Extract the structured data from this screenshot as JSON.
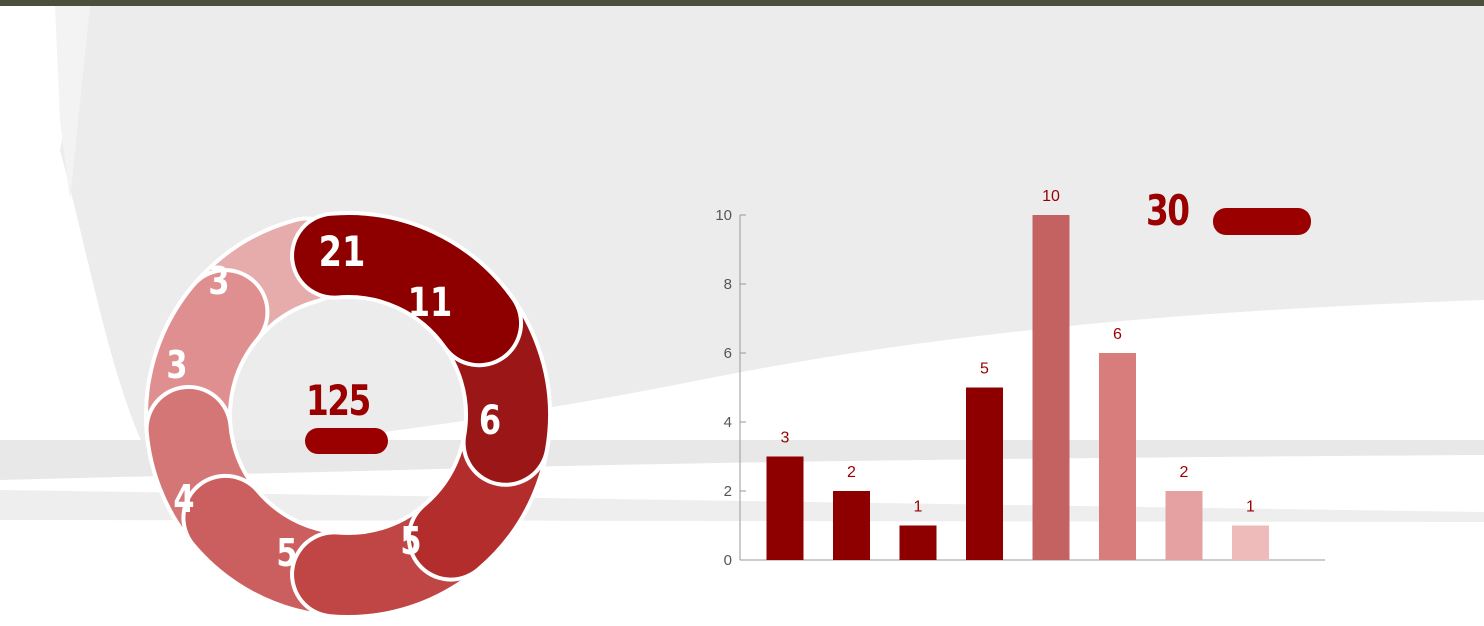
{
  "donut": {
    "total": "125",
    "segments": [
      {
        "label": "21",
        "value": 21,
        "color": "#8e0000"
      },
      {
        "label": "11",
        "value": 11,
        "color": "#9b1616"
      },
      {
        "label": "6",
        "value": 6,
        "color": "#b42d2d"
      },
      {
        "label": "5",
        "value": 5,
        "color": "#c04545"
      },
      {
        "label": "5",
        "value": 5,
        "color": "#cb5f5f"
      },
      {
        "label": "4",
        "value": 4,
        "color": "#d57676"
      },
      {
        "label": "3",
        "value": 3,
        "color": "#df8f8f"
      },
      {
        "label": "3",
        "value": 3,
        "color": "#e6acac"
      }
    ]
  },
  "bar_total": "30",
  "chart_data": {
    "type": "bar",
    "categories": [
      "",
      "",
      "",
      "",
      "",
      "",
      "",
      ""
    ],
    "values": [
      3,
      2,
      1,
      5,
      10,
      6,
      2,
      1
    ],
    "bar_colors": [
      "#8e0000",
      "#8e0000",
      "#8e0000",
      "#8e0000",
      "#c46262",
      "#d97c7c",
      "#e5a1a1",
      "#eebaba"
    ],
    "yticks": [
      "0",
      "2",
      "4",
      "6",
      "8",
      "10"
    ],
    "ylim": [
      0,
      10
    ],
    "title": "",
    "xlabel": "",
    "ylabel": ""
  }
}
